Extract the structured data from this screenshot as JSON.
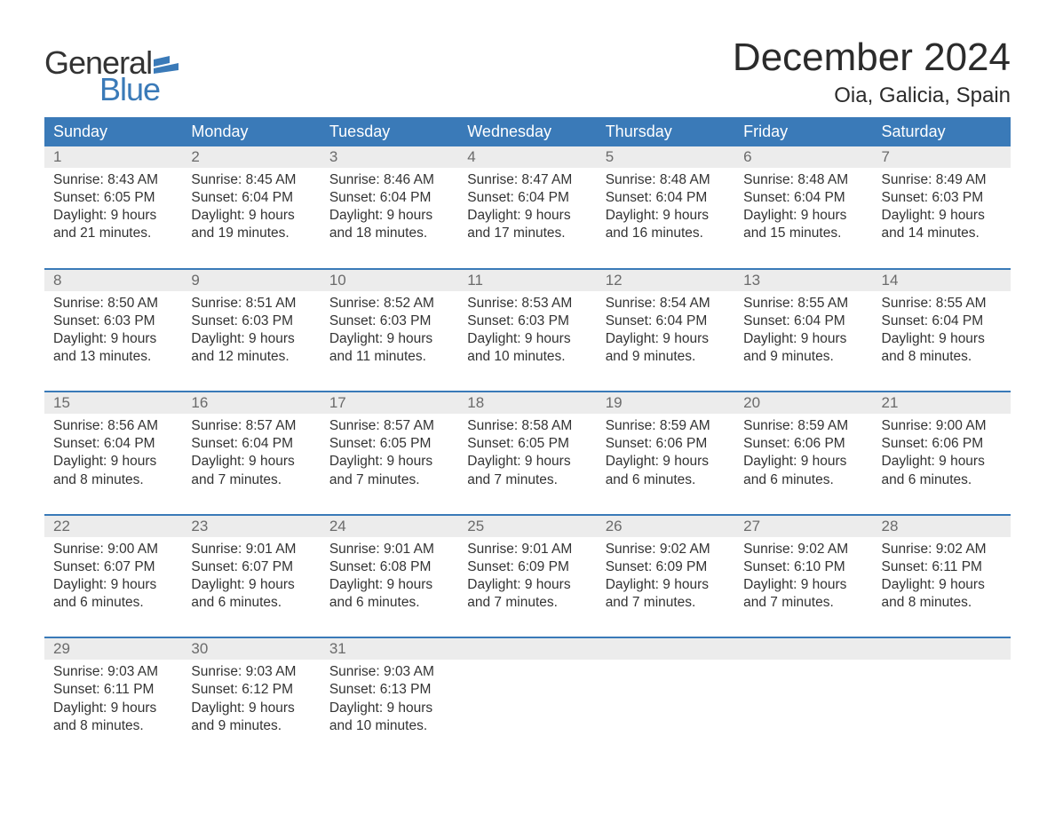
{
  "logo": {
    "text_general": "General",
    "text_blue": "Blue",
    "flag_color": "#3a7ab8"
  },
  "title": "December 2024",
  "location": "Oia, Galicia, Spain",
  "colors": {
    "header_bg": "#3a7ab8",
    "header_text": "#ffffff",
    "daynum_bg": "#ececec",
    "daynum_text": "#6b6b6b",
    "body_text": "#333333",
    "separator": "#3a7ab8",
    "page_bg": "#ffffff"
  },
  "typography": {
    "title_fontsize": 44,
    "location_fontsize": 24,
    "weekday_fontsize": 18,
    "daynum_fontsize": 17,
    "cell_fontsize": 15.5,
    "font_family": "Arial"
  },
  "weekdays": [
    "Sunday",
    "Monday",
    "Tuesday",
    "Wednesday",
    "Thursday",
    "Friday",
    "Saturday"
  ],
  "weeks": [
    [
      {
        "day": "1",
        "sunrise": "Sunrise: 8:43 AM",
        "sunset": "Sunset: 6:05 PM",
        "dl1": "Daylight: 9 hours",
        "dl2": "and 21 minutes."
      },
      {
        "day": "2",
        "sunrise": "Sunrise: 8:45 AM",
        "sunset": "Sunset: 6:04 PM",
        "dl1": "Daylight: 9 hours",
        "dl2": "and 19 minutes."
      },
      {
        "day": "3",
        "sunrise": "Sunrise: 8:46 AM",
        "sunset": "Sunset: 6:04 PM",
        "dl1": "Daylight: 9 hours",
        "dl2": "and 18 minutes."
      },
      {
        "day": "4",
        "sunrise": "Sunrise: 8:47 AM",
        "sunset": "Sunset: 6:04 PM",
        "dl1": "Daylight: 9 hours",
        "dl2": "and 17 minutes."
      },
      {
        "day": "5",
        "sunrise": "Sunrise: 8:48 AM",
        "sunset": "Sunset: 6:04 PM",
        "dl1": "Daylight: 9 hours",
        "dl2": "and 16 minutes."
      },
      {
        "day": "6",
        "sunrise": "Sunrise: 8:48 AM",
        "sunset": "Sunset: 6:04 PM",
        "dl1": "Daylight: 9 hours",
        "dl2": "and 15 minutes."
      },
      {
        "day": "7",
        "sunrise": "Sunrise: 8:49 AM",
        "sunset": "Sunset: 6:03 PM",
        "dl1": "Daylight: 9 hours",
        "dl2": "and 14 minutes."
      }
    ],
    [
      {
        "day": "8",
        "sunrise": "Sunrise: 8:50 AM",
        "sunset": "Sunset: 6:03 PM",
        "dl1": "Daylight: 9 hours",
        "dl2": "and 13 minutes."
      },
      {
        "day": "9",
        "sunrise": "Sunrise: 8:51 AM",
        "sunset": "Sunset: 6:03 PM",
        "dl1": "Daylight: 9 hours",
        "dl2": "and 12 minutes."
      },
      {
        "day": "10",
        "sunrise": "Sunrise: 8:52 AM",
        "sunset": "Sunset: 6:03 PM",
        "dl1": "Daylight: 9 hours",
        "dl2": "and 11 minutes."
      },
      {
        "day": "11",
        "sunrise": "Sunrise: 8:53 AM",
        "sunset": "Sunset: 6:03 PM",
        "dl1": "Daylight: 9 hours",
        "dl2": "and 10 minutes."
      },
      {
        "day": "12",
        "sunrise": "Sunrise: 8:54 AM",
        "sunset": "Sunset: 6:04 PM",
        "dl1": "Daylight: 9 hours",
        "dl2": "and 9 minutes."
      },
      {
        "day": "13",
        "sunrise": "Sunrise: 8:55 AM",
        "sunset": "Sunset: 6:04 PM",
        "dl1": "Daylight: 9 hours",
        "dl2": "and 9 minutes."
      },
      {
        "day": "14",
        "sunrise": "Sunrise: 8:55 AM",
        "sunset": "Sunset: 6:04 PM",
        "dl1": "Daylight: 9 hours",
        "dl2": "and 8 minutes."
      }
    ],
    [
      {
        "day": "15",
        "sunrise": "Sunrise: 8:56 AM",
        "sunset": "Sunset: 6:04 PM",
        "dl1": "Daylight: 9 hours",
        "dl2": "and 8 minutes."
      },
      {
        "day": "16",
        "sunrise": "Sunrise: 8:57 AM",
        "sunset": "Sunset: 6:04 PM",
        "dl1": "Daylight: 9 hours",
        "dl2": "and 7 minutes."
      },
      {
        "day": "17",
        "sunrise": "Sunrise: 8:57 AM",
        "sunset": "Sunset: 6:05 PM",
        "dl1": "Daylight: 9 hours",
        "dl2": "and 7 minutes."
      },
      {
        "day": "18",
        "sunrise": "Sunrise: 8:58 AM",
        "sunset": "Sunset: 6:05 PM",
        "dl1": "Daylight: 9 hours",
        "dl2": "and 7 minutes."
      },
      {
        "day": "19",
        "sunrise": "Sunrise: 8:59 AM",
        "sunset": "Sunset: 6:06 PM",
        "dl1": "Daylight: 9 hours",
        "dl2": "and 6 minutes."
      },
      {
        "day": "20",
        "sunrise": "Sunrise: 8:59 AM",
        "sunset": "Sunset: 6:06 PM",
        "dl1": "Daylight: 9 hours",
        "dl2": "and 6 minutes."
      },
      {
        "day": "21",
        "sunrise": "Sunrise: 9:00 AM",
        "sunset": "Sunset: 6:06 PM",
        "dl1": "Daylight: 9 hours",
        "dl2": "and 6 minutes."
      }
    ],
    [
      {
        "day": "22",
        "sunrise": "Sunrise: 9:00 AM",
        "sunset": "Sunset: 6:07 PM",
        "dl1": "Daylight: 9 hours",
        "dl2": "and 6 minutes."
      },
      {
        "day": "23",
        "sunrise": "Sunrise: 9:01 AM",
        "sunset": "Sunset: 6:07 PM",
        "dl1": "Daylight: 9 hours",
        "dl2": "and 6 minutes."
      },
      {
        "day": "24",
        "sunrise": "Sunrise: 9:01 AM",
        "sunset": "Sunset: 6:08 PM",
        "dl1": "Daylight: 9 hours",
        "dl2": "and 6 minutes."
      },
      {
        "day": "25",
        "sunrise": "Sunrise: 9:01 AM",
        "sunset": "Sunset: 6:09 PM",
        "dl1": "Daylight: 9 hours",
        "dl2": "and 7 minutes."
      },
      {
        "day": "26",
        "sunrise": "Sunrise: 9:02 AM",
        "sunset": "Sunset: 6:09 PM",
        "dl1": "Daylight: 9 hours",
        "dl2": "and 7 minutes."
      },
      {
        "day": "27",
        "sunrise": "Sunrise: 9:02 AM",
        "sunset": "Sunset: 6:10 PM",
        "dl1": "Daylight: 9 hours",
        "dl2": "and 7 minutes."
      },
      {
        "day": "28",
        "sunrise": "Sunrise: 9:02 AM",
        "sunset": "Sunset: 6:11 PM",
        "dl1": "Daylight: 9 hours",
        "dl2": "and 8 minutes."
      }
    ],
    [
      {
        "day": "29",
        "sunrise": "Sunrise: 9:03 AM",
        "sunset": "Sunset: 6:11 PM",
        "dl1": "Daylight: 9 hours",
        "dl2": "and 8 minutes."
      },
      {
        "day": "30",
        "sunrise": "Sunrise: 9:03 AM",
        "sunset": "Sunset: 6:12 PM",
        "dl1": "Daylight: 9 hours",
        "dl2": "and 9 minutes."
      },
      {
        "day": "31",
        "sunrise": "Sunrise: 9:03 AM",
        "sunset": "Sunset: 6:13 PM",
        "dl1": "Daylight: 9 hours",
        "dl2": "and 10 minutes."
      },
      {
        "day": "",
        "sunrise": "",
        "sunset": "",
        "dl1": "",
        "dl2": ""
      },
      {
        "day": "",
        "sunrise": "",
        "sunset": "",
        "dl1": "",
        "dl2": ""
      },
      {
        "day": "",
        "sunrise": "",
        "sunset": "",
        "dl1": "",
        "dl2": ""
      },
      {
        "day": "",
        "sunrise": "",
        "sunset": "",
        "dl1": "",
        "dl2": ""
      }
    ]
  ]
}
